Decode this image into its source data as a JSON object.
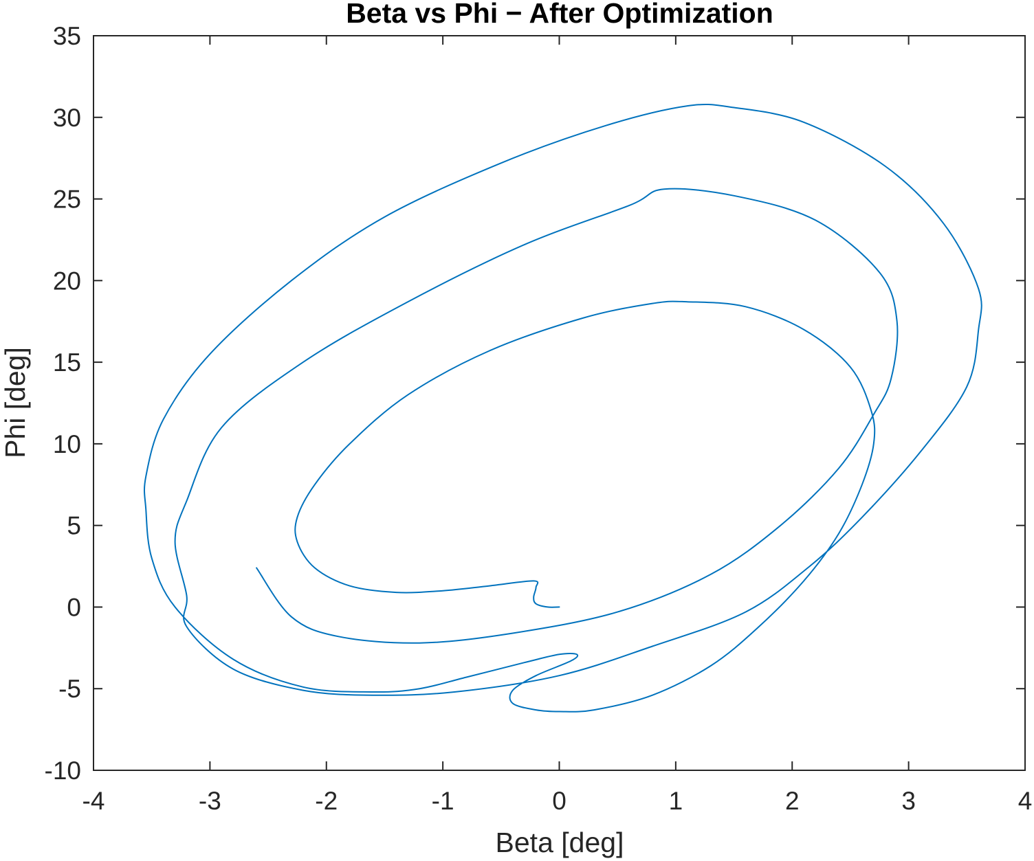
{
  "chart_data": {
    "type": "line",
    "title": "Beta vs Phi − After Optimization",
    "xlabel": "Beta [deg]",
    "ylabel": "Phi [deg]",
    "xlim": [
      -4,
      4
    ],
    "ylim": [
      -10,
      35
    ],
    "xticks": [
      -4,
      -3,
      -2,
      -1,
      0,
      1,
      2,
      3,
      4
    ],
    "yticks": [
      -10,
      -5,
      0,
      5,
      10,
      15,
      20,
      25,
      30,
      35
    ],
    "xtick_labels": [
      "-4",
      "-3",
      "-2",
      "-1",
      "0",
      "1",
      "2",
      "3",
      "4"
    ],
    "ytick_labels": [
      "-10",
      "-5",
      "0",
      "5",
      "10",
      "15",
      "20",
      "25",
      "30",
      "35"
    ],
    "grid": false,
    "box": true,
    "colors": {
      "axis": "#262626",
      "line": "#0072BD"
    },
    "series": [
      {
        "color": "#0072BD",
        "points": [
          [
            0.0,
            0.0
          ],
          [
            -0.1,
            0.0
          ],
          [
            -0.2,
            0.2
          ],
          [
            -0.22,
            0.6
          ],
          [
            -0.2,
            1.2
          ],
          [
            -0.22,
            1.6
          ],
          [
            -0.6,
            1.3
          ],
          [
            -1.0,
            1.0
          ],
          [
            -1.4,
            0.9
          ],
          [
            -1.8,
            1.3
          ],
          [
            -2.1,
            2.4
          ],
          [
            -2.25,
            4.0
          ],
          [
            -2.25,
            5.5
          ],
          [
            -2.1,
            7.5
          ],
          [
            -1.8,
            10.0
          ],
          [
            -1.3,
            13.0
          ],
          [
            -0.6,
            15.7
          ],
          [
            0.2,
            17.7
          ],
          [
            0.8,
            18.6
          ],
          [
            1.1,
            18.7
          ],
          [
            1.6,
            18.4
          ],
          [
            2.1,
            17.0
          ],
          [
            2.5,
            14.7
          ],
          [
            2.68,
            12.0
          ],
          [
            2.7,
            10.0
          ],
          [
            2.6,
            7.5
          ],
          [
            2.4,
            4.5
          ],
          [
            2.1,
            1.6
          ],
          [
            1.7,
            -1.3
          ],
          [
            1.3,
            -3.6
          ],
          [
            0.8,
            -5.4
          ],
          [
            0.3,
            -6.3
          ],
          [
            0.0,
            -6.4
          ],
          [
            -0.2,
            -6.3
          ],
          [
            -0.4,
            -5.9
          ],
          [
            -0.4,
            -5.1
          ],
          [
            -0.2,
            -4.2
          ],
          [
            0.1,
            -3.3
          ],
          [
            0.15,
            -2.9
          ],
          [
            0.0,
            -2.9
          ],
          [
            -0.3,
            -3.4
          ],
          [
            -0.8,
            -4.3
          ],
          [
            -1.2,
            -5.0
          ],
          [
            -1.6,
            -5.2
          ],
          [
            -2.2,
            -4.9
          ],
          [
            -2.8,
            -3.2
          ],
          [
            -3.3,
            0.0
          ],
          [
            -3.5,
            3.0
          ],
          [
            -3.55,
            6.0
          ],
          [
            -3.55,
            8.0
          ],
          [
            -3.4,
            11.5
          ],
          [
            -3.0,
            15.5
          ],
          [
            -2.3,
            20.0
          ],
          [
            -1.5,
            23.9
          ],
          [
            -0.5,
            27.2
          ],
          [
            0.4,
            29.5
          ],
          [
            1.1,
            30.7
          ],
          [
            1.5,
            30.6
          ],
          [
            2.1,
            29.7
          ],
          [
            2.8,
            27.0
          ],
          [
            3.3,
            23.5
          ],
          [
            3.6,
            19.5
          ],
          [
            3.6,
            17.0
          ],
          [
            3.5,
            13.5
          ],
          [
            3.1,
            9.5
          ],
          [
            2.6,
            5.5
          ],
          [
            2.15,
            2.5
          ],
          [
            1.6,
            -0.3
          ],
          [
            0.8,
            -2.4
          ],
          [
            0.0,
            -4.2
          ],
          [
            -0.9,
            -5.2
          ],
          [
            -1.6,
            -5.4
          ],
          [
            -2.2,
            -5.1
          ],
          [
            -2.8,
            -3.8
          ],
          [
            -3.2,
            -1.2
          ],
          [
            -3.2,
            0.7
          ],
          [
            -3.3,
            4.0
          ],
          [
            -3.2,
            6.5
          ],
          [
            -2.9,
            11.0
          ],
          [
            -2.2,
            15.0
          ],
          [
            -1.3,
            18.7
          ],
          [
            -0.3,
            22.2
          ],
          [
            0.6,
            24.6
          ],
          [
            0.9,
            25.6
          ],
          [
            1.5,
            25.2
          ],
          [
            2.2,
            23.7
          ],
          [
            2.75,
            20.5
          ],
          [
            2.9,
            17.5
          ],
          [
            2.85,
            14.0
          ],
          [
            2.7,
            11.8
          ],
          [
            2.4,
            8.5
          ],
          [
            1.9,
            5.0
          ],
          [
            1.3,
            2.0
          ],
          [
            0.5,
            -0.3
          ],
          [
            -0.4,
            -1.6
          ],
          [
            -1.2,
            -2.2
          ],
          [
            -1.9,
            -1.8
          ],
          [
            -2.3,
            -0.6
          ],
          [
            -2.6,
            2.4
          ]
        ]
      }
    ]
  }
}
